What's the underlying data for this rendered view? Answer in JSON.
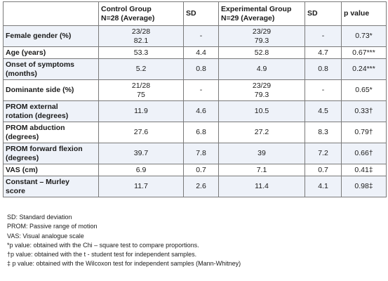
{
  "table": {
    "headers": {
      "blank": "",
      "control_line1": "Control Group",
      "control_line2": "N=28 (Average)",
      "sd1": "SD",
      "exp_line1": "Experimental Group",
      "exp_line2": "N=29 (Average)",
      "sd2": "SD",
      "pvalue": "p value"
    },
    "rows": [
      {
        "label_line1": "Female gender (%)",
        "label_line2": "",
        "control_line1": "23/28",
        "control_line2": "82.1",
        "sd1": "-",
        "exp_line1": "23/29",
        "exp_line2": "79.3",
        "sd2": "-",
        "p": "0.73*"
      },
      {
        "label_line1": "Age (years)",
        "label_line2": "",
        "control_line1": "53.3",
        "control_line2": "",
        "sd1": "4.4",
        "exp_line1": "52.8",
        "exp_line2": "",
        "sd2": "4.7",
        "p": "0.67***"
      },
      {
        "label_line1": "Onset of symptoms",
        "label_line2": "(months)",
        "control_line1": "5.2",
        "control_line2": "",
        "sd1": "0.8",
        "exp_line1": "4.9",
        "exp_line2": "",
        "sd2": "0.8",
        "p": "0.24***"
      },
      {
        "label_line1": "Dominante side (%)",
        "label_line2": "",
        "control_line1": "21/28",
        "control_line2": "75",
        "sd1": "-",
        "exp_line1": "23/29",
        "exp_line2": "79.3",
        "sd2": "-",
        "p": "0.65*"
      },
      {
        "label_line1": "PROM external",
        "label_line2": "rotation (degrees)",
        "control_line1": "11.9",
        "control_line2": "",
        "sd1": "4.6",
        "exp_line1": "10.5",
        "exp_line2": "",
        "sd2": "4.5",
        "p": "0.33†"
      },
      {
        "label_line1": "PROM abduction",
        "label_line2": "(degrees)",
        "control_line1": "27.6",
        "control_line2": "",
        "sd1": "6.8",
        "exp_line1": "27.2",
        "exp_line2": "",
        "sd2": "8.3",
        "p": "0.79†"
      },
      {
        "label_line1": "PROM forward flexion",
        "label_line2": "(degrees)",
        "control_line1": "39.7",
        "control_line2": "",
        "sd1": "7.8",
        "exp_line1": "39",
        "exp_line2": "",
        "sd2": "7.2",
        "p": "0.66†"
      },
      {
        "label_line1": "VAS (cm)",
        "label_line2": "",
        "control_line1": "6.9",
        "control_line2": "",
        "sd1": "0.7",
        "exp_line1": "7.1",
        "exp_line2": "",
        "sd2": "0.7",
        "p": "0.41‡"
      },
      {
        "label_line1": "Constant – Murley",
        "label_line2": "score",
        "control_line1": "11.7",
        "control_line2": "",
        "sd1": "2.6",
        "exp_line1": "11.4",
        "exp_line2": "",
        "sd2": "4.1",
        "p": "0.98‡"
      }
    ]
  },
  "notes": [
    "SD: Standard deviation",
    "PROM: Passive range of motion",
    "VAS: Visual analogue scale",
    "*p value: obtained with the Chi – square test to compare proportions.",
    "†p value: obtained with the t - student test for independent samples.",
    "‡ p value: obtained with the Wilcoxon test for independent samples (Mann-Whitney)"
  ]
}
